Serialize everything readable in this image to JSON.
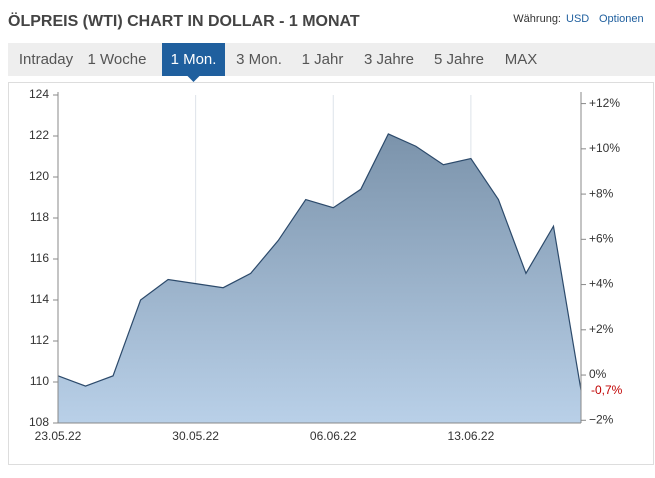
{
  "header": {
    "title": "ÖLPREIS (WTI) CHART IN DOLLAR - 1 MONAT",
    "currency_label": "Währung:",
    "currency": "USD",
    "options": "Optionen"
  },
  "tabs": [
    "Intraday",
    "1 Woche",
    "1 Mon.",
    "3 Mon.",
    "1 Jahr",
    "3 Jahre",
    "5 Jahre",
    "MAX"
  ],
  "active_tab": 2,
  "chart_data": {
    "type": "area",
    "categories": [
      "23.05.22",
      null,
      null,
      null,
      null,
      "30.05.22",
      null,
      null,
      null,
      null,
      "06.06.22",
      null,
      null,
      null,
      null,
      "13.06.22",
      null,
      null,
      null,
      null
    ],
    "values": [
      110.3,
      109.8,
      110.3,
      114.0,
      115.0,
      114.8,
      114.6,
      115.3,
      116.9,
      118.9,
      118.5,
      119.4,
      122.1,
      121.5,
      120.6,
      120.9,
      118.9,
      115.3,
      117.6,
      109.6
    ],
    "color": "#2c4a6b",
    "ylim": [
      108,
      124
    ],
    "yticks": [
      108,
      110,
      112,
      114,
      116,
      118,
      120,
      122,
      124
    ],
    "y2lim": [
      -2.12,
      12.38
    ],
    "y2ticks": [
      {
        "value": -2,
        "label": "−2%"
      },
      {
        "value": 0,
        "label": "0%"
      },
      {
        "value": 2,
        "label": "+2%"
      },
      {
        "value": 4,
        "label": "+4%"
      },
      {
        "value": 6,
        "label": "+6%"
      },
      {
        "value": 8,
        "label": "+8%"
      },
      {
        "value": 10,
        "label": "+10%"
      },
      {
        "value": 12,
        "label": "+12%"
      }
    ],
    "last_change": {
      "value": -0.7,
      "label": "-0,7%"
    },
    "grid": "x"
  }
}
